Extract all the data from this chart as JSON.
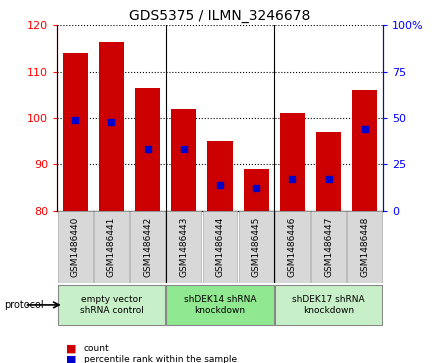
{
  "title": "GDS5375 / ILMN_3246678",
  "samples": [
    "GSM1486440",
    "GSM1486441",
    "GSM1486442",
    "GSM1486443",
    "GSM1486444",
    "GSM1486445",
    "GSM1486446",
    "GSM1486447",
    "GSM1486448"
  ],
  "counts": [
    114.0,
    116.5,
    106.5,
    102.0,
    95.0,
    89.0,
    101.0,
    97.0,
    106.0
  ],
  "percentiles": [
    49,
    48,
    33,
    33,
    14,
    12,
    17,
    17,
    44
  ],
  "ylim_left": [
    80,
    120
  ],
  "ylim_right": [
    0,
    100
  ],
  "yticks_left": [
    80,
    90,
    100,
    110,
    120
  ],
  "yticks_right": [
    0,
    25,
    50,
    75,
    100
  ],
  "groups": [
    {
      "label": "empty vector\nshRNA control",
      "start": 0,
      "end": 3,
      "color": "#c8f0c8"
    },
    {
      "label": "shDEK14 shRNA\nknockdown",
      "start": 3,
      "end": 6,
      "color": "#90e890"
    },
    {
      "label": "shDEK17 shRNA\nknockdown",
      "start": 6,
      "end": 9,
      "color": "#c8f0c8"
    }
  ],
  "bar_color": "#cc0000",
  "marker_color": "#0000cc",
  "bar_bottom": 80,
  "bar_width": 0.7,
  "protocol_label": "protocol",
  "legend_count_label": "count",
  "legend_percentile_label": "percentile rank within the sample",
  "title_fontsize": 10,
  "tick_fontsize": 8,
  "label_fontsize": 7.5,
  "sample_box_color": "#d8d8d8",
  "sample_box_color2": "#e8e8e8"
}
